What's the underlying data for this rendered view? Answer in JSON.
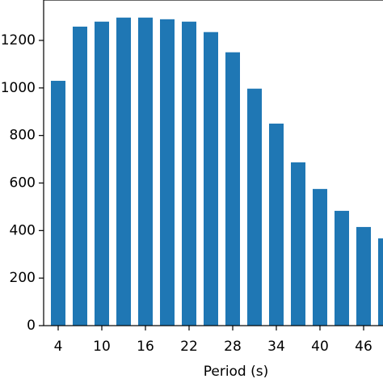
{
  "chart_data": {
    "type": "bar",
    "x_label": "Period (s)",
    "x": [
      4,
      7,
      10,
      13,
      16,
      19,
      22,
      25,
      28,
      31,
      34,
      37,
      40,
      43,
      46,
      49
    ],
    "values": [
      1030,
      1258,
      1279,
      1296,
      1296,
      1289,
      1279,
      1235,
      1150,
      997,
      850,
      687,
      575,
      483,
      415,
      367
    ],
    "color": "#1f77b4",
    "xlim": [
      2,
      50
    ],
    "xticks": [
      4,
      10,
      16,
      22,
      28,
      34,
      40,
      46
    ],
    "ylim": [
      0,
      1370
    ],
    "yticks": [
      0,
      200,
      400,
      600,
      800,
      1000,
      1200
    ]
  }
}
